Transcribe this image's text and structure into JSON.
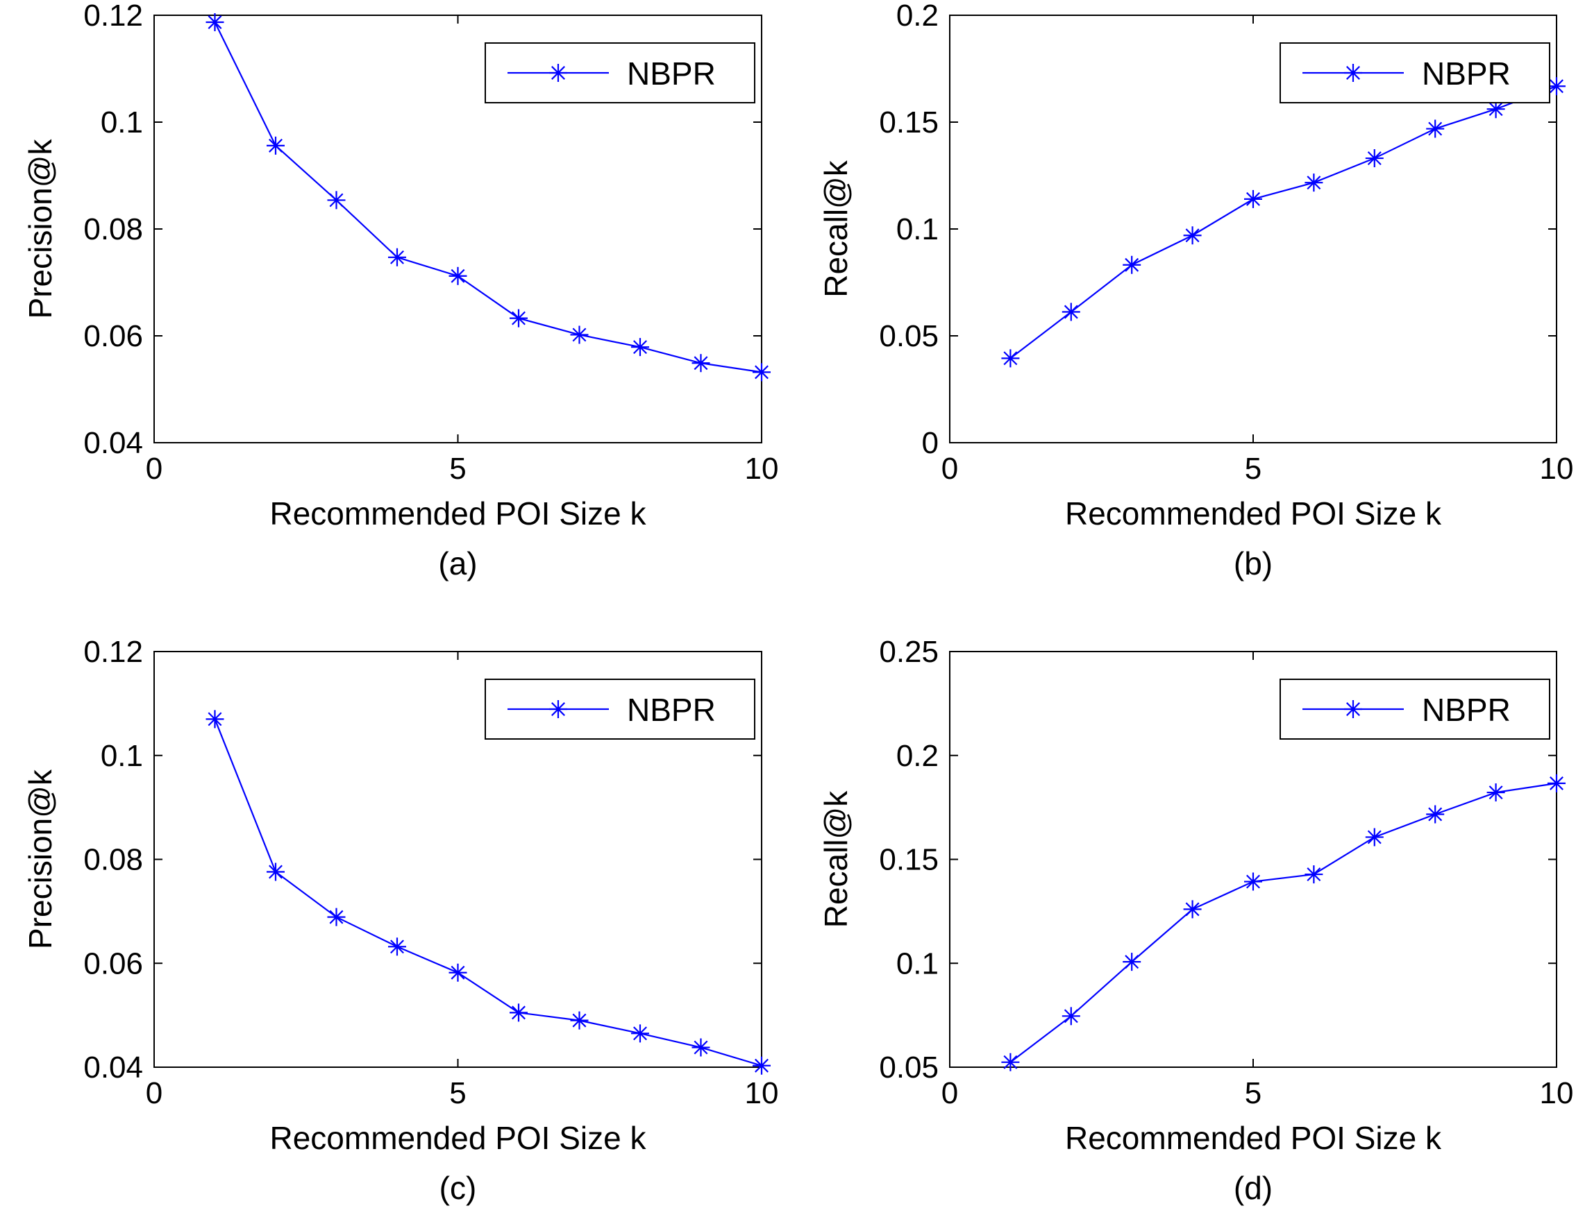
{
  "figure": {
    "series_color": "#0000ff",
    "axis_color": "#000000"
  },
  "chart_data": [
    {
      "type": "line",
      "panel_label": "(a)",
      "xlabel": "Recommended POI Size k",
      "ylabel": "Precision@k",
      "xlim": [
        0,
        10
      ],
      "ylim": [
        0.04,
        0.12
      ],
      "xticks": [
        0,
        5,
        10
      ],
      "xtick_labels": [
        "0",
        "5",
        "10"
      ],
      "yticks": [
        0.04,
        0.06,
        0.08,
        0.1,
        0.12
      ],
      "ytick_labels": [
        "0.04",
        "0.06",
        "0.08",
        "0.1",
        "0.12"
      ],
      "legend": "top-right",
      "series": [
        {
          "name": "NBPR",
          "marker": "asterisk",
          "x": [
            1,
            2,
            3,
            4,
            5,
            6,
            7,
            8,
            9,
            10
          ],
          "values": [
            0.1187,
            0.0956,
            0.0854,
            0.0747,
            0.0712,
            0.0633,
            0.0602,
            0.0579,
            0.0549,
            0.0532
          ]
        }
      ]
    },
    {
      "type": "line",
      "panel_label": "(b)",
      "xlabel": "Recommended POI Size k",
      "ylabel": "Recall@k",
      "xlim": [
        0,
        10
      ],
      "ylim": [
        0,
        0.2
      ],
      "xticks": [
        0,
        5,
        10
      ],
      "xtick_labels": [
        "0",
        "5",
        "10"
      ],
      "yticks": [
        0,
        0.05,
        0.1,
        0.15,
        0.2
      ],
      "ytick_labels": [
        "0",
        "0.05",
        "0.1",
        "0.15",
        "0.2"
      ],
      "legend": "top-right",
      "series": [
        {
          "name": "NBPR",
          "marker": "asterisk",
          "x": [
            1,
            2,
            3,
            4,
            5,
            6,
            7,
            8,
            9,
            10
          ],
          "values": [
            0.0395,
            0.0612,
            0.0832,
            0.097,
            0.114,
            0.1217,
            0.1331,
            0.1469,
            0.1561,
            0.1668
          ]
        }
      ]
    },
    {
      "type": "line",
      "panel_label": "(c)",
      "xlabel": "Recommended POI Size k",
      "ylabel": "Precision@k",
      "xlim": [
        0,
        10
      ],
      "ylim": [
        0.04,
        0.12
      ],
      "xticks": [
        0,
        5,
        10
      ],
      "xtick_labels": [
        "0",
        "5",
        "10"
      ],
      "yticks": [
        0.04,
        0.06,
        0.08,
        0.1,
        0.12
      ],
      "ytick_labels": [
        "0.04",
        "0.06",
        "0.08",
        "0.1",
        "0.12"
      ],
      "legend": "top-right",
      "series": [
        {
          "name": "NBPR",
          "marker": "asterisk",
          "x": [
            1,
            2,
            3,
            4,
            5,
            6,
            7,
            8,
            9,
            10
          ],
          "values": [
            0.107,
            0.0776,
            0.0689,
            0.0632,
            0.0582,
            0.0505,
            0.049,
            0.0465,
            0.0438,
            0.0403
          ]
        }
      ]
    },
    {
      "type": "line",
      "panel_label": "(d)",
      "xlabel": "Recommended POI Size k",
      "ylabel": "Recall@k",
      "xlim": [
        0,
        10
      ],
      "ylim": [
        0.05,
        0.25
      ],
      "xticks": [
        0,
        5,
        10
      ],
      "xtick_labels": [
        "0",
        "5",
        "10"
      ],
      "yticks": [
        0.05,
        0.1,
        0.15,
        0.2,
        0.25
      ],
      "ytick_labels": [
        "0.05",
        "0.1",
        "0.15",
        "0.2",
        "0.25"
      ],
      "legend": "top-right",
      "series": [
        {
          "name": "NBPR",
          "marker": "asterisk",
          "x": [
            1,
            2,
            3,
            4,
            5,
            6,
            7,
            8,
            9,
            10
          ],
          "values": [
            0.0524,
            0.0746,
            0.1007,
            0.126,
            0.1393,
            0.1428,
            0.1607,
            0.1717,
            0.1822,
            0.1866
          ]
        }
      ]
    }
  ]
}
